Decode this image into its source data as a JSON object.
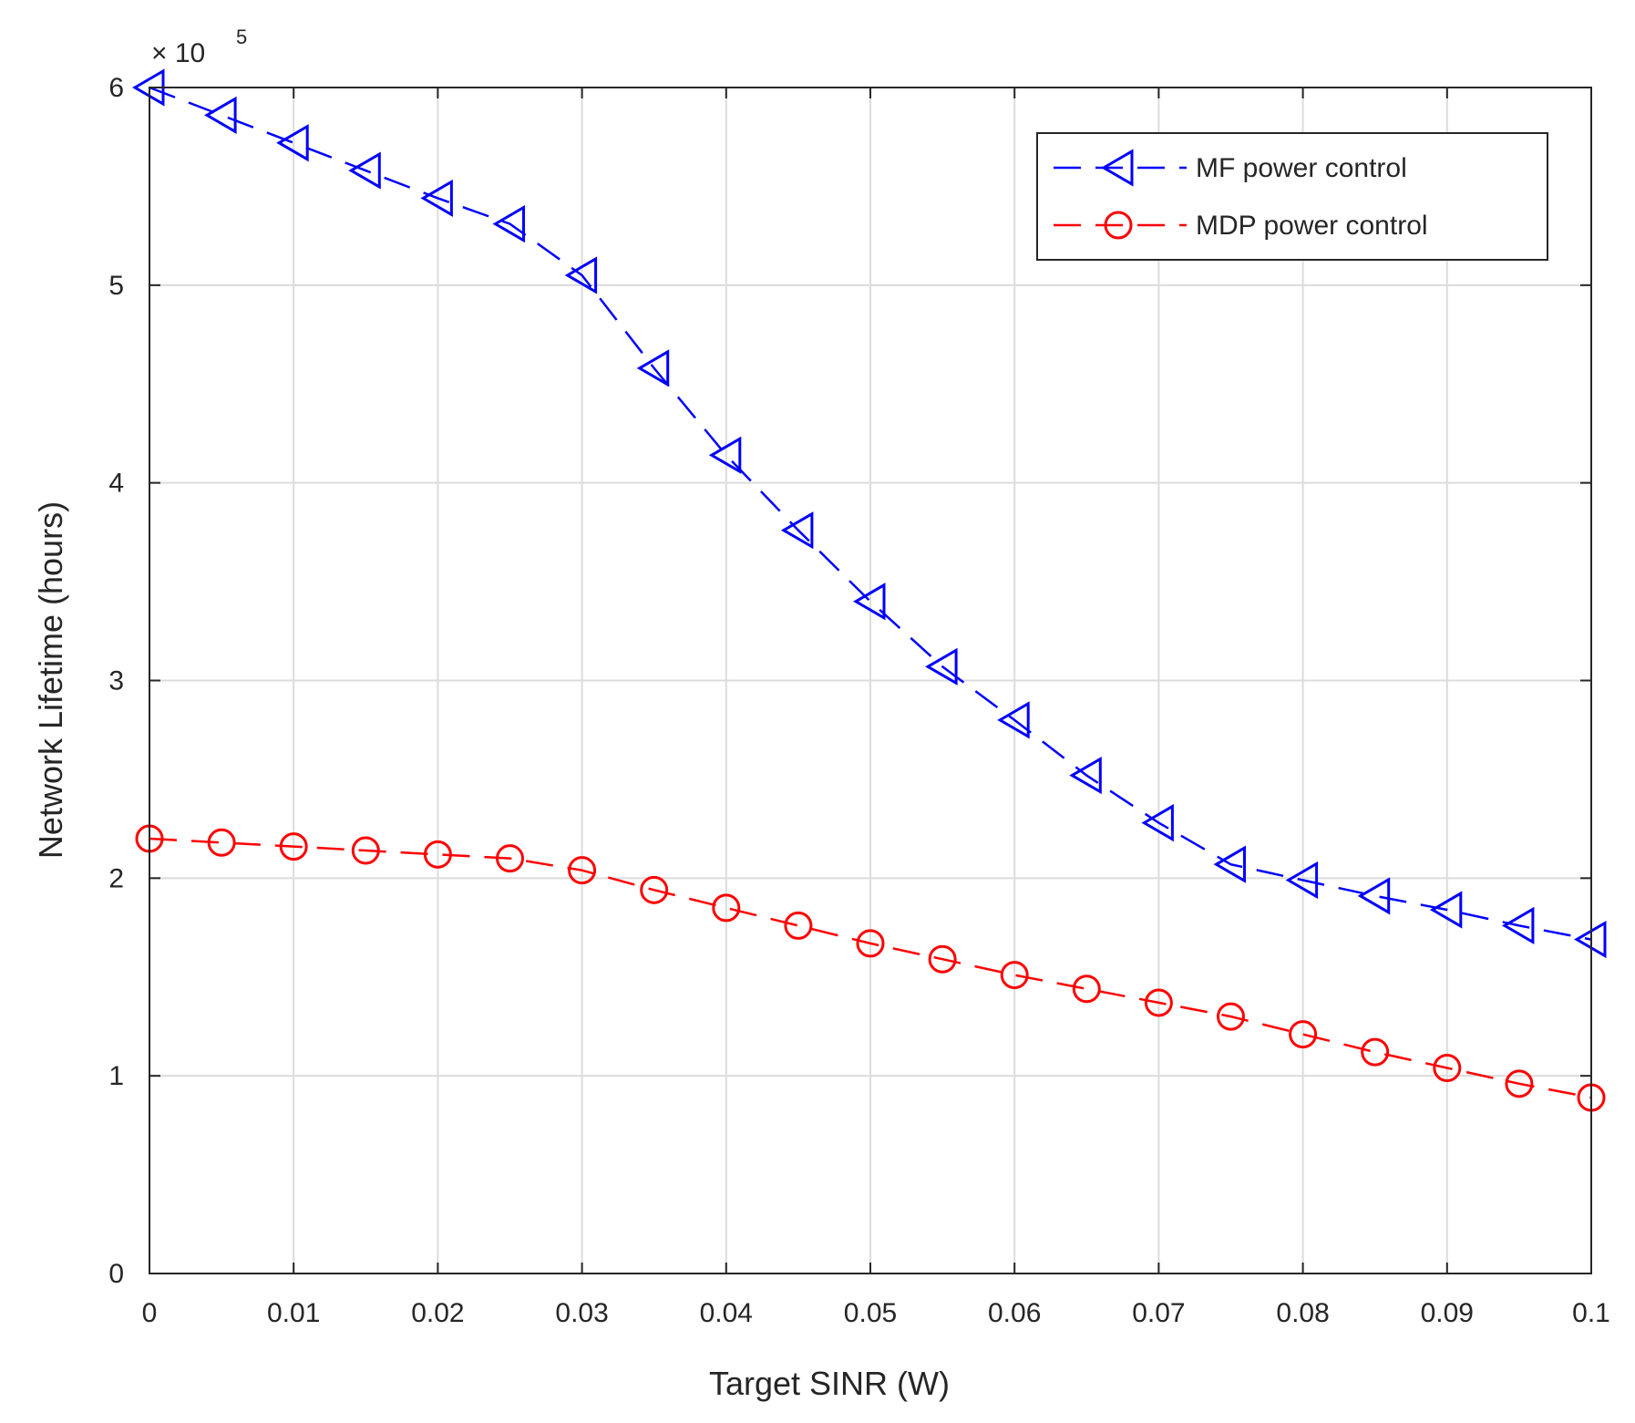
{
  "chart_data": {
    "type": "line",
    "xlabel": "Target SINR (W)",
    "ylabel": "Network Lifetime (hours)",
    "y_exponent_label": "× 10",
    "y_exponent_power": "5",
    "xlim": [
      0,
      0.1
    ],
    "ylim": [
      0,
      6
    ],
    "x_ticks": [
      0,
      0.01,
      0.02,
      0.03,
      0.04,
      0.05,
      0.06,
      0.07,
      0.08,
      0.09,
      0.1
    ],
    "x_tick_labels": [
      "0",
      "0.01",
      "0.02",
      "0.03",
      "0.04",
      "0.05",
      "0.06",
      "0.07",
      "0.08",
      "0.09",
      "0.1"
    ],
    "y_ticks": [
      0,
      1,
      2,
      3,
      4,
      5,
      6
    ],
    "y_tick_labels": [
      "0",
      "1",
      "2",
      "3",
      "4",
      "5",
      "6"
    ],
    "grid": true,
    "legend_position": "top-right",
    "x": [
      0,
      0.005,
      0.01,
      0.015,
      0.02,
      0.025,
      0.03,
      0.035,
      0.04,
      0.045,
      0.05,
      0.055,
      0.06,
      0.065,
      0.07,
      0.075,
      0.08,
      0.085,
      0.09,
      0.095,
      0.1
    ],
    "series": [
      {
        "name": "MF power control",
        "color": "#0000ff",
        "marker": "triangle-left",
        "line_style": "dashed",
        "values": [
          6.0,
          5.86,
          5.72,
          5.58,
          5.44,
          5.31,
          5.05,
          4.58,
          4.14,
          3.76,
          3.4,
          3.07,
          2.8,
          2.52,
          2.28,
          2.07,
          1.99,
          1.91,
          1.84,
          1.76,
          1.69
        ]
      },
      {
        "name": "MDP power control",
        "color": "#ff0000",
        "marker": "circle",
        "line_style": "dashed",
        "values": [
          2.2,
          2.18,
          2.16,
          2.14,
          2.12,
          2.1,
          2.04,
          1.94,
          1.85,
          1.76,
          1.67,
          1.59,
          1.51,
          1.44,
          1.37,
          1.3,
          1.21,
          1.12,
          1.04,
          0.96,
          0.89
        ]
      }
    ]
  }
}
